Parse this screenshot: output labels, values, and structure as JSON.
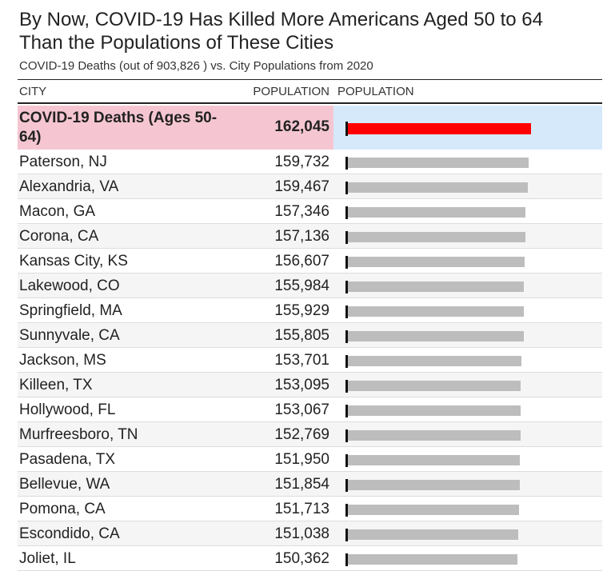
{
  "title_line1": "By Now, COVID-19 Has Killed More Americans Aged 50 to 64",
  "title_line2": "Than the Populations of These Cities",
  "subtitle": "COVID-19 Deaths (out of 903,826 ) vs. City Populations from 2020",
  "columns": {
    "city": "CITY",
    "population": "POPULATION",
    "bar": "POPULATION"
  },
  "colors": {
    "highlight_bar": "#ff0000",
    "city_bar": "#bdbdbd",
    "highlight_label_bg": "#f5c6d2",
    "highlight_bar_bg": "#d6e9fb"
  },
  "chart_data": {
    "type": "bar",
    "orientation": "horizontal",
    "xlim": [
      0,
      162045
    ],
    "highlight": {
      "label": "COVID-19 Deaths (Ages 50-64)",
      "value": 162045,
      "display": "162,045"
    },
    "rows": [
      {
        "city": "Paterson, NJ",
        "value": 159732,
        "display": "159,732"
      },
      {
        "city": "Alexandria, VA",
        "value": 159467,
        "display": "159,467"
      },
      {
        "city": "Macon, GA",
        "value": 157346,
        "display": "157,346"
      },
      {
        "city": "Corona, CA",
        "value": 157136,
        "display": "157,136"
      },
      {
        "city": "Kansas City, KS",
        "value": 156607,
        "display": "156,607"
      },
      {
        "city": "Lakewood, CO",
        "value": 155984,
        "display": "155,984"
      },
      {
        "city": "Springfield, MA",
        "value": 155929,
        "display": "155,929"
      },
      {
        "city": "Sunnyvale, CA",
        "value": 155805,
        "display": "155,805"
      },
      {
        "city": "Jackson, MS",
        "value": 153701,
        "display": "153,701"
      },
      {
        "city": "Killeen, TX",
        "value": 153095,
        "display": "153,095"
      },
      {
        "city": "Hollywood, FL",
        "value": 153067,
        "display": "153,067"
      },
      {
        "city": "Murfreesboro, TN",
        "value": 152769,
        "display": "152,769"
      },
      {
        "city": "Pasadena, TX",
        "value": 151950,
        "display": "151,950"
      },
      {
        "city": "Bellevue, WA",
        "value": 151854,
        "display": "151,854"
      },
      {
        "city": "Pomona, CA",
        "value": 151713,
        "display": "151,713"
      },
      {
        "city": "Escondido, CA",
        "value": 151038,
        "display": "151,038"
      },
      {
        "city": "Joliet, IL",
        "value": 150362,
        "display": "150,362"
      }
    ]
  }
}
